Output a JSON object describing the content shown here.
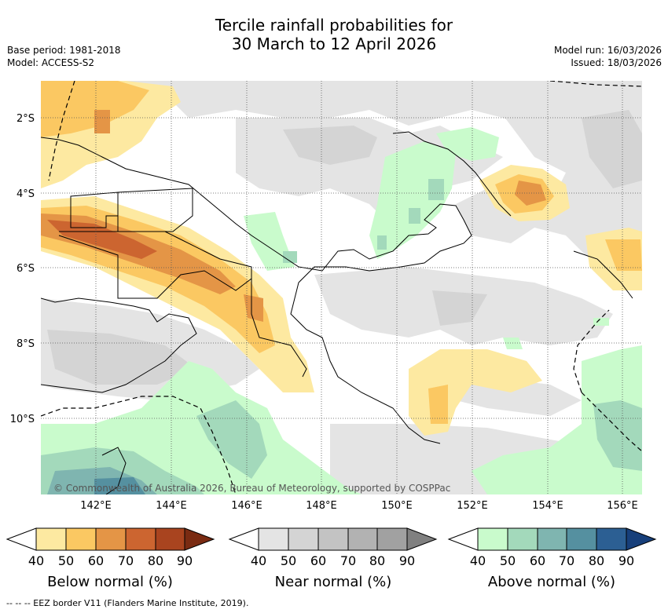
{
  "header": {
    "title_line1": "Tercile rainfall probabilities for",
    "title_line2": "30 March to 12 April 2026",
    "base_period": "Base period: 1981-2018",
    "model": "Model: ACCESS-S2",
    "model_run": "Model run: 16/03/2026",
    "issued": "Issued: 18/03/2026"
  },
  "map": {
    "lat_labels": [
      "2°S",
      "4°S",
      "6°S",
      "8°S",
      "10°S"
    ],
    "lon_labels": [
      "142°E",
      "144°E",
      "146°E",
      "148°E",
      "150°E",
      "152°E",
      "154°E",
      "156°E"
    ],
    "copyright": "© Commonwealth of Australia 2026, Bureau of Meteorology, supported by COSPPac"
  },
  "legend": {
    "ticks": [
      "40",
      "50",
      "60",
      "70",
      "80",
      "90"
    ],
    "below": {
      "title": "Below normal (%)",
      "colors": [
        "#ffffff",
        "#fde9a1",
        "#fbc862",
        "#e49546",
        "#cc6530",
        "#a9441f",
        "#7a2b12"
      ]
    },
    "near": {
      "title": "Near normal (%)",
      "colors": [
        "#ffffff",
        "#e4e4e4",
        "#d4d4d4",
        "#c3c3c3",
        "#b2b2b2",
        "#a1a1a1",
        "#808080"
      ]
    },
    "above": {
      "title": "Above normal (%)",
      "colors": [
        "#ffffff",
        "#c9fbcc",
        "#a3d9bb",
        "#7fb5b0",
        "#5590a0",
        "#2c5f93",
        "#173f7a"
      ]
    }
  },
  "footnote": "-- -- -- EEZ border V11 (Flanders Marine Institute, 2019)."
}
